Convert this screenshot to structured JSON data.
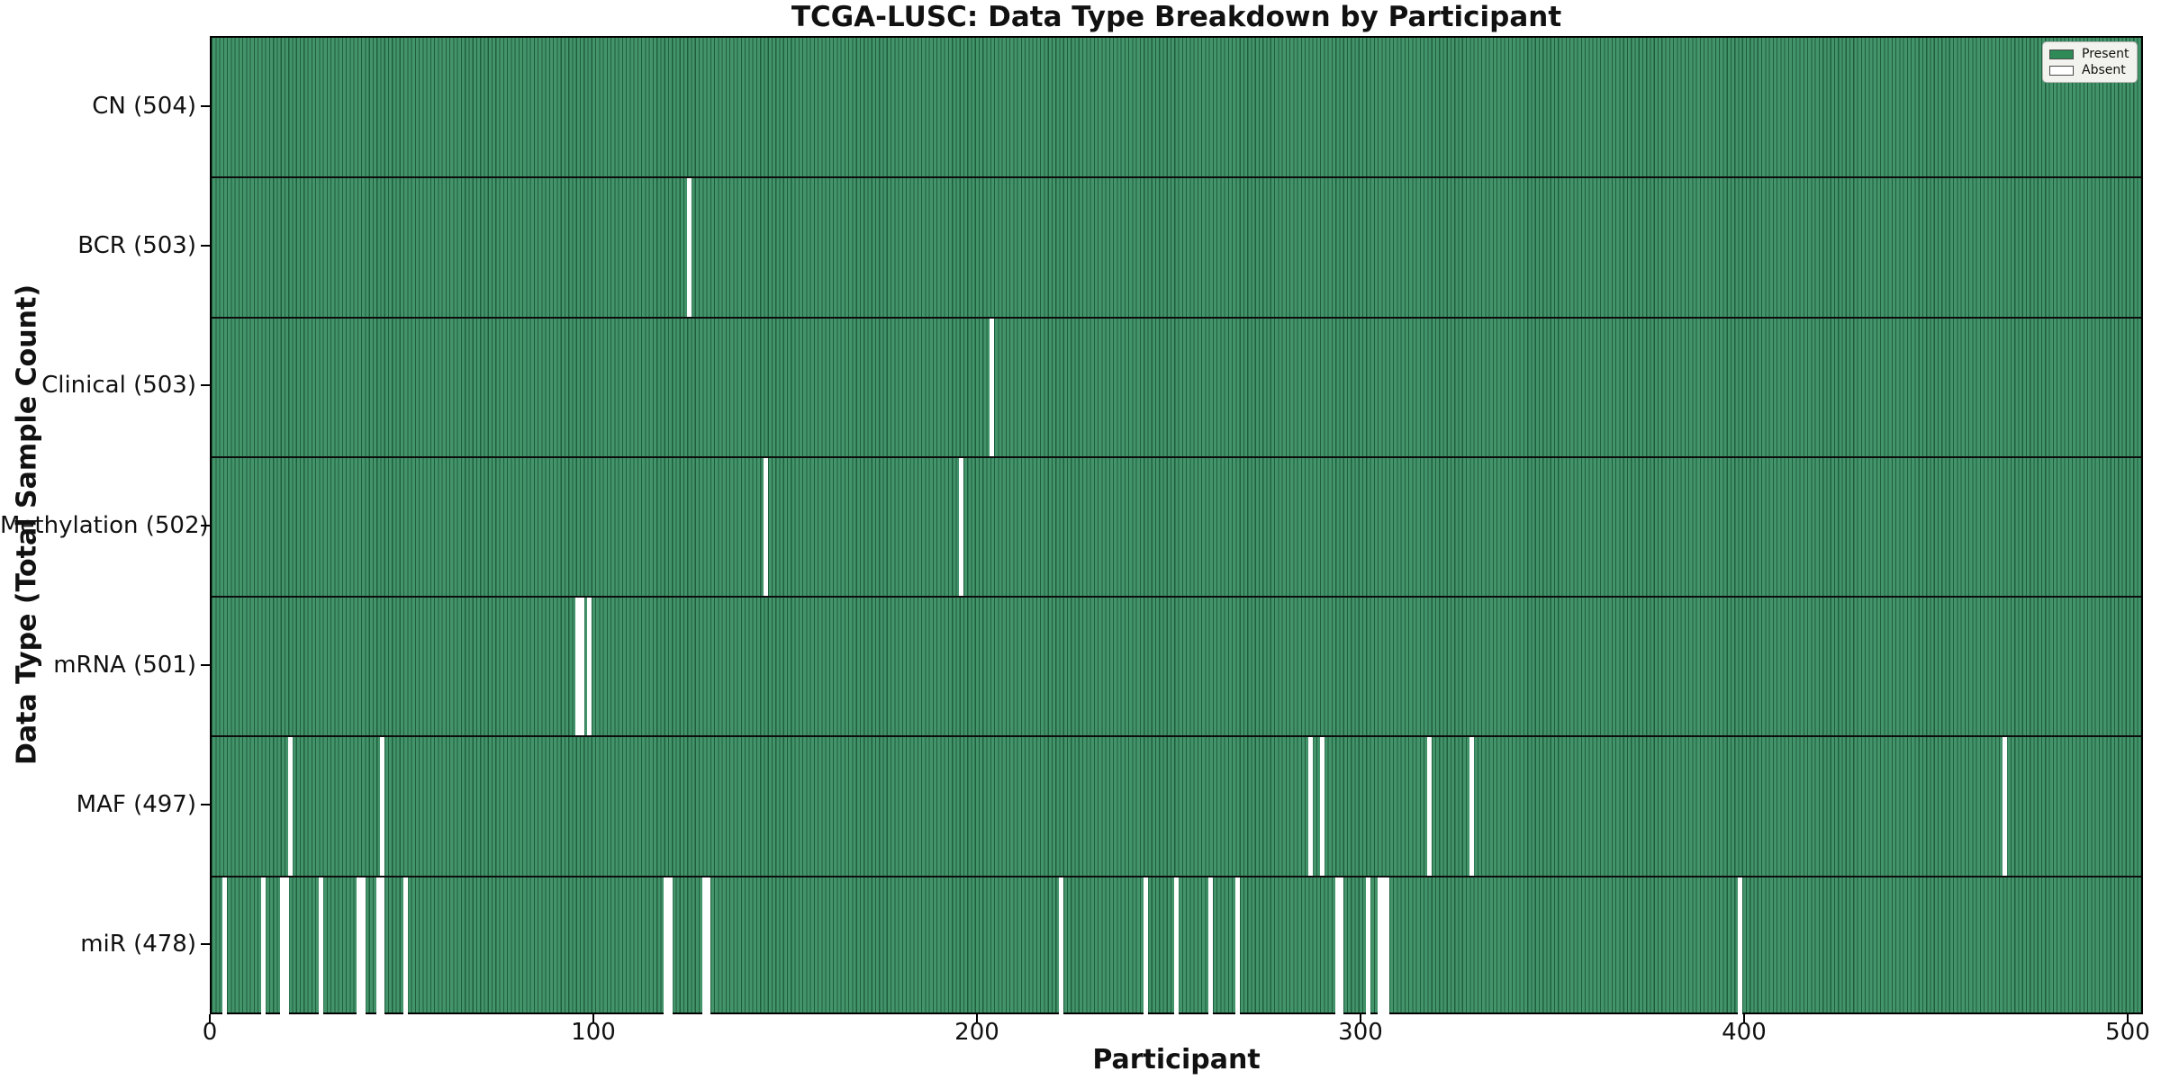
{
  "chart_data": {
    "type": "heatmap",
    "title": "TCGA-LUSC: Data Type Breakdown by Participant",
    "xlabel": "Participant",
    "ylabel": "Data Type (Total Sample Count)",
    "total_participants": 504,
    "xlim": [
      0,
      504
    ],
    "x_ticks": [
      0,
      100,
      200,
      300,
      400,
      500
    ],
    "grid": false,
    "legend": {
      "present_label": "Present",
      "absent_label": "Absent",
      "position": "upper right"
    },
    "colors": {
      "present": "#2E8B57",
      "present_fill": "#44946B",
      "bar_edge": "#1E5E3C",
      "absent": "#FFFFFF",
      "legend_bg": "#F2F2EE",
      "legend_border": "#B7B7B7",
      "separator": "#0D0D0D"
    },
    "rows": [
      {
        "name": "CN",
        "count": 504,
        "absent_participants": []
      },
      {
        "name": "BCR",
        "count": 503,
        "absent_participants": [
          124
        ]
      },
      {
        "name": "Clinical",
        "count": 503,
        "absent_participants": [
          203
        ]
      },
      {
        "name": "Methylation",
        "count": 502,
        "absent_participants": [
          144,
          195
        ]
      },
      {
        "name": "mRNA",
        "count": 501,
        "absent_participants": [
          95,
          96,
          98
        ]
      },
      {
        "name": "MAF",
        "count": 497,
        "absent_participants": [
          20,
          44,
          286,
          289,
          317,
          328,
          467
        ]
      },
      {
        "name": "miR",
        "count": 478,
        "absent_participants": [
          3,
          13,
          18,
          19,
          28,
          38,
          39,
          43,
          44,
          50,
          118,
          119,
          128,
          129,
          221,
          243,
          251,
          260,
          267,
          293,
          294,
          301,
          304,
          305,
          306,
          398
        ]
      }
    ]
  }
}
